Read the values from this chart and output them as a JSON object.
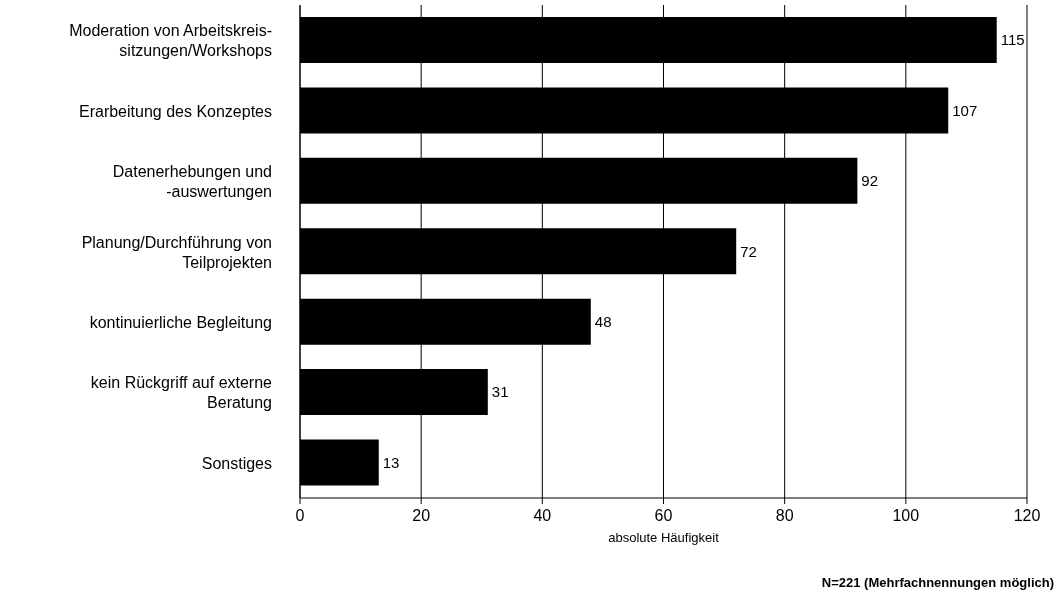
{
  "chart_data": {
    "type": "bar",
    "orientation": "horizontal",
    "categories": [
      "Moderation von Arbeitskreis-\nsitzungen/Workshops",
      "Erarbeitung des Konzeptes",
      "Datenerhebungen und\n-auswertungen",
      "Planung/Durchführung von\nTeilprojekten",
      "kontinuierliche Begleitung",
      "kein Rückgriff auf externe\nBeratung",
      "Sonstiges"
    ],
    "values": [
      115,
      107,
      92,
      72,
      48,
      31,
      13
    ],
    "color": "#000000",
    "xlim": [
      0,
      120
    ],
    "xticks": [
      0,
      20,
      40,
      60,
      80,
      100,
      120
    ],
    "xlabel": "absolute Häufigkeit",
    "grid": "x",
    "data_labels": true,
    "annotations": [
      "N=221 (Mehrfachnennungen möglich)"
    ]
  }
}
